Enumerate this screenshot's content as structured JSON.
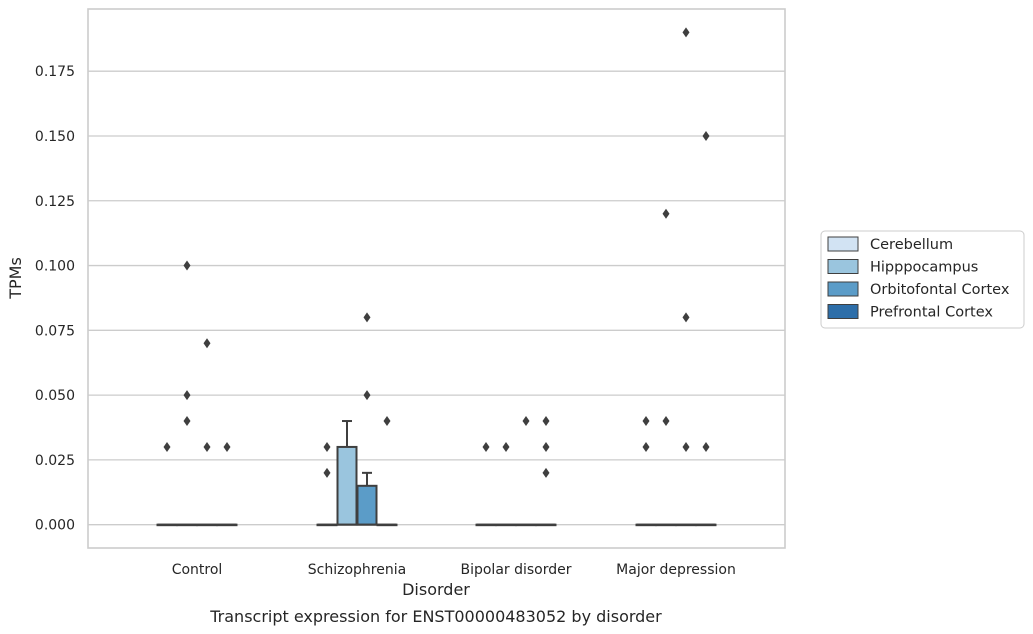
{
  "chart_data": {
    "type": "box",
    "xlabel": "Disorder",
    "ylabel": "TPMs",
    "caption": "Transcript expression for ENST00000483052 by disorder",
    "ylim": [
      -0.009,
      0.199
    ],
    "yticks": [
      "0.000",
      "0.025",
      "0.050",
      "0.075",
      "0.100",
      "0.125",
      "0.150",
      "0.175"
    ],
    "grid": "horizontal",
    "legend_position": "right",
    "categories": [
      "Control",
      "Schizophrenia",
      "Bipolar disorder",
      "Major depression"
    ],
    "series": [
      {
        "name": "Cerebellum",
        "color": "#d2e3f3",
        "boxes": [
          {
            "q1": 0,
            "median": 0,
            "q3": 0,
            "whisker_low": 0,
            "whisker_high": 0,
            "outliers": [
              0.03
            ]
          },
          {
            "q1": 0,
            "median": 0,
            "q3": 0,
            "whisker_low": 0,
            "whisker_high": 0,
            "outliers": [
              0.03,
              0.02
            ]
          },
          {
            "q1": 0,
            "median": 0,
            "q3": 0,
            "whisker_low": 0,
            "whisker_high": 0,
            "outliers": [
              0.03
            ]
          },
          {
            "q1": 0,
            "median": 0,
            "q3": 0,
            "whisker_low": 0,
            "whisker_high": 0,
            "outliers": [
              0.04,
              0.03
            ]
          }
        ]
      },
      {
        "name": "Hipppocampus",
        "color": "#9ac5de",
        "boxes": [
          {
            "q1": 0,
            "median": 0,
            "q3": 0,
            "whisker_low": 0,
            "whisker_high": 0,
            "outliers": [
              0.1,
              0.05,
              0.04
            ]
          },
          {
            "q1": 0,
            "median": 0,
            "q3": 0.03,
            "whisker_low": 0,
            "whisker_high": 0.04,
            "outliers": []
          },
          {
            "q1": 0,
            "median": 0,
            "q3": 0,
            "whisker_low": 0,
            "whisker_high": 0,
            "outliers": [
              0.03
            ]
          },
          {
            "q1": 0,
            "median": 0,
            "q3": 0,
            "whisker_low": 0,
            "whisker_high": 0,
            "outliers": [
              0.12,
              0.04
            ]
          }
        ]
      },
      {
        "name": "Orbitofontal Cortex",
        "color": "#5b9cc8",
        "boxes": [
          {
            "q1": 0,
            "median": 0,
            "q3": 0,
            "whisker_low": 0,
            "whisker_high": 0,
            "outliers": [
              0.07,
              0.03
            ]
          },
          {
            "q1": 0,
            "median": 0,
            "q3": 0.015,
            "whisker_low": 0,
            "whisker_high": 0.02,
            "outliers": [
              0.08,
              0.05
            ]
          },
          {
            "q1": 0,
            "median": 0,
            "q3": 0,
            "whisker_low": 0,
            "whisker_high": 0,
            "outliers": [
              0.04
            ]
          },
          {
            "q1": 0,
            "median": 0,
            "q3": 0,
            "whisker_low": 0,
            "whisker_high": 0,
            "outliers": [
              0.19,
              0.08,
              0.03
            ]
          }
        ]
      },
      {
        "name": "Prefrontal Cortex",
        "color": "#2d6ea9",
        "boxes": [
          {
            "q1": 0,
            "median": 0,
            "q3": 0,
            "whisker_low": 0,
            "whisker_high": 0,
            "outliers": [
              0.03
            ]
          },
          {
            "q1": 0,
            "median": 0,
            "q3": 0,
            "whisker_low": 0,
            "whisker_high": 0,
            "outliers": [
              0.04
            ]
          },
          {
            "q1": 0,
            "median": 0,
            "q3": 0,
            "whisker_low": 0,
            "whisker_high": 0,
            "outliers": [
              0.04,
              0.03,
              0.02
            ]
          },
          {
            "q1": 0,
            "median": 0,
            "q3": 0,
            "whisker_low": 0,
            "whisker_high": 0,
            "outliers": [
              0.15,
              0.03
            ]
          }
        ]
      }
    ]
  }
}
